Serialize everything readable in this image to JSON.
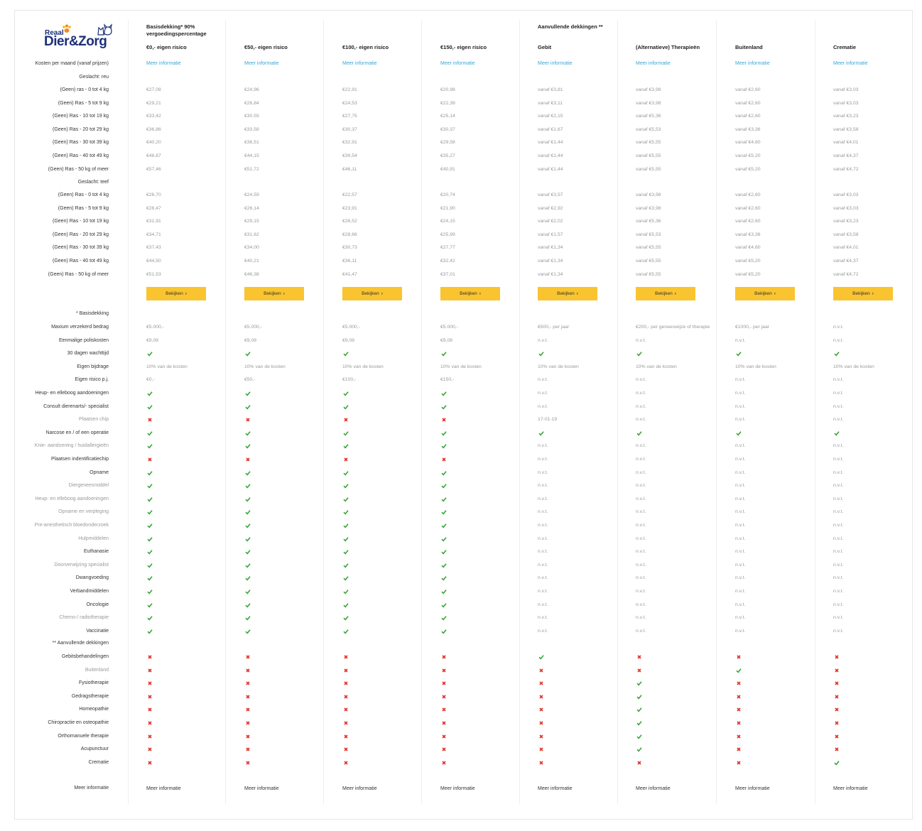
{
  "brand": {
    "top": "Reaal",
    "main": "Dier&Zorg"
  },
  "headers": [
    {
      "group": "Basisdekking* 90% vergoedingspercentage",
      "title": "€0,- eigen risico"
    },
    {
      "group": "",
      "title": "€50,- eigen risico"
    },
    {
      "group": "",
      "title": "€100,- eigen risico"
    },
    {
      "group": "",
      "title": "€150,- eigen risico"
    },
    {
      "group": "Aanvullende dekkingen **",
      "title": "Gebit"
    },
    {
      "group": "",
      "title": "(Alternatieve) Therapieën"
    },
    {
      "group": "",
      "title": "Buitenland"
    },
    {
      "group": "",
      "title": "Crematie"
    }
  ],
  "price_label": "Kosten per maand (vanaf prijzen)",
  "meer_informatie": "Meer informatie",
  "gender_reu": "Geslacht: reu",
  "gender_teef": "Geslacht: teef",
  "weight_labels": [
    "(Geen) ras - 0 tot 4 kg",
    "(Geen) Ras - 5 tot 9 kg",
    "(Geen) Ras - 10 tot 19 kg",
    "(Geen) Ras - 20 tot 29 kg",
    "(Geen) Ras - 30 tot 39 kg",
    "(Geen) Ras - 40  tot 49 kg",
    "(Geen) Ras - 50 kg of meer"
  ],
  "weight_labels_teef": [
    "(Geen) Ras - 0 tot 4 kg",
    "(Geen) Ras - 5 tot 9 kg",
    "(Geen) Ras - 10 tot 19 kg",
    "(Geen) Ras - 20 tot 29 kg",
    "(Geen) Ras - 30 tot 39 kg",
    "(Geen) Ras - 40  tot 49 kg",
    "(Geen) Ras - 50 kg of meer"
  ],
  "prices_reu": [
    [
      "€27,08",
      "€24,96",
      "€22,91",
      "€20,98",
      "vanaf €3,81",
      "vanaf €3,98",
      "vanaf €2,60",
      "vanaf €3,03"
    ],
    [
      "€29,21",
      "€26,84",
      "€24,53",
      "€22,39",
      "vanaf €3,11",
      "vanaf €3,98",
      "vanaf €2,60",
      "vanaf €3,03"
    ],
    [
      "€33,42",
      "€30,55",
      "€27,75",
      "€25,14",
      "vanaf €2,15",
      "vanaf €5,36",
      "vanaf €2,60",
      "vanaf €3,23"
    ],
    [
      "€36,86",
      "€33,58",
      "€30,37",
      "€30,37",
      "vanaf €1,67",
      "vanaf €5,53",
      "vanaf €3,36",
      "vanaf €3,58"
    ],
    [
      "€40,20",
      "€36,51",
      "€32,91",
      "€29,58",
      "vanaf €1,44",
      "vanaf €5,55",
      "vanaf €4,60",
      "vanaf €4,01"
    ],
    [
      "€48,87",
      "€44,15",
      "€39,54",
      "€35,27",
      "vanaf €1,44",
      "vanaf €5,55",
      "vanaf €5,20",
      "vanaf €4,37"
    ],
    [
      "€57,46",
      "€51,72",
      "€46,11",
      "€40,91",
      "vanaf €1,44",
      "vanaf €5,55",
      "vanaf €5,20",
      "vanaf €4,72"
    ]
  ],
  "prices_teef": [
    [
      "€26,70",
      "€24,59",
      "€22,57",
      "€20,74",
      "vanaf €3,57",
      "vanaf €3,98",
      "vanaf €2,60",
      "vanaf €3,03"
    ],
    [
      "€28,47",
      "€26,14",
      "€23,91",
      "€21,90",
      "vanaf €2,92",
      "vanaf €3,98",
      "vanaf €2,60",
      "vanaf €3,03"
    ],
    [
      "€31,91",
      "€29,15",
      "€26,52",
      "€24,15",
      "vanaf €2,02",
      "vanaf €5,36",
      "vanaf €2,60",
      "vanaf €3,23"
    ],
    [
      "€34,71",
      "€31,62",
      "€28,66",
      "€25,99",
      "vanaf €1,57",
      "vanaf €5,53",
      "vanaf €3,36",
      "vanaf €3,58"
    ],
    [
      "€37,43",
      "€34,00",
      "€30,73",
      "€27,77",
      "vanaf €1,34",
      "vanaf €5,55",
      "vanaf €4,60",
      "vanaf €4,01"
    ],
    [
      "€44,50",
      "€40,21",
      "€36,11",
      "€32,42",
      "vanaf €1,34",
      "vanaf €5,55",
      "vanaf €5,20",
      "vanaf €4,37"
    ],
    [
      "€51,53",
      "€46,38",
      "€41,47",
      "€37,01",
      "vanaf €1,34",
      "vanaf €5,55",
      "vanaf €5,20",
      "vanaf €4,72"
    ]
  ],
  "button_label": "Bekijken",
  "basisdekking_label": "* Basisdekking",
  "basis_rows": [
    {
      "label": "Maxium verzekerd bedrag",
      "bold": true,
      "cells": [
        "€5.000,-",
        "€5.000,-",
        "€5.000,-",
        "€5.000,-",
        "€500,- per jaar",
        "€200,- per geneeswijze of therapie",
        "€1000,- per jaar",
        "n.v.t."
      ]
    },
    {
      "label": "Eenmalige poliskosten",
      "bold": true,
      "cells": [
        "€9,08",
        "€9,08",
        "€9,08",
        "€9,08",
        "n.v.t.",
        "n.v.t.",
        "n.v.t.",
        "n.v.t."
      ]
    },
    {
      "label": "30 dagen wachttijd",
      "bold": true,
      "cells": [
        "Y",
        "Y",
        "Y",
        "Y",
        "Y",
        "Y",
        "Y",
        "Y"
      ]
    },
    {
      "label": "Eigen bijdrage",
      "bold": true,
      "cells": [
        "10% van de kosten",
        "10% van de kosten",
        "10% van de kosten",
        "10% van de kosten",
        "10% van de kosten",
        "10% van de kosten",
        "10% van de kosten",
        "10% van de kosten"
      ]
    },
    {
      "label": "Eigen risico p.j.",
      "bold": true,
      "cells": [
        "€0,-",
        "€50,-",
        "€100,-",
        "€150,-",
        "n.v.t.",
        "n.v.t.",
        "n.v.t.",
        "n.v.t."
      ]
    },
    {
      "label": "Heup- en elleboog aandoeningen",
      "bold": true,
      "cells": [
        "Y",
        "Y",
        "Y",
        "Y",
        "n.v.t.",
        "n.v.t.",
        "n.v.t.",
        "n.v.t."
      ]
    },
    {
      "label": "Consult dierenarts/- specialist",
      "bold": true,
      "cells": [
        "Y",
        "Y",
        "Y",
        "Y",
        "n.v.t.",
        "n.v.t.",
        "n.v.t.",
        "n.v.t."
      ]
    },
    {
      "label": "Plaatsen chip",
      "bold": false,
      "cells": [
        "N",
        "N",
        "N",
        "N",
        "17-01-19",
        "n.v.t.",
        "n.v.t.",
        "n.v.t."
      ]
    },
    {
      "label": "Narcose en / of een operatie",
      "bold": true,
      "cells": [
        "Y",
        "Y",
        "Y",
        "Y",
        "Y",
        "Y",
        "Y",
        "Y"
      ]
    },
    {
      "label": "Knie- aandoening / huidallergieën",
      "bold": false,
      "cells": [
        "Y",
        "Y",
        "Y",
        "Y",
        "n.v.t.",
        "n.v.t.",
        "n.v.t.",
        "n.v.t."
      ]
    },
    {
      "label": "Plaatsen indentificatiechip",
      "bold": true,
      "cells": [
        "N",
        "N",
        "N",
        "N",
        "n.v.t.",
        "n.v.t.",
        "n.v.t.",
        "n.v.t."
      ]
    },
    {
      "label": "Opname",
      "bold": true,
      "cells": [
        "Y",
        "Y",
        "Y",
        "Y",
        "n.v.t.",
        "n.v.t.",
        "n.v.t.",
        "n.v.t."
      ]
    },
    {
      "label": "Diergeneesmiddel",
      "bold": false,
      "cells": [
        "Y",
        "Y",
        "Y",
        "Y",
        "n.v.t.",
        "n.v.t.",
        "n.v.t.",
        "n.v.t."
      ]
    },
    {
      "label": "Heup- en elleboog aandoeningen",
      "bold": false,
      "cells": [
        "Y",
        "Y",
        "Y",
        "Y",
        "n.v.t.",
        "n.v.t.",
        "n.v.t.",
        "n.v.t."
      ]
    },
    {
      "label": "Opname en verpleging",
      "bold": false,
      "cells": [
        "Y",
        "Y",
        "Y",
        "Y",
        "n.v.t.",
        "n.v.t.",
        "n.v.t.",
        "n.v.t."
      ]
    },
    {
      "label": "Pre-anesthetisch bloedonderzoek",
      "bold": false,
      "cells": [
        "Y",
        "Y",
        "Y",
        "Y",
        "n.v.t.",
        "n.v.t.",
        "n.v.t.",
        "n.v.t."
      ]
    },
    {
      "label": "Hulpmiddelen",
      "bold": false,
      "cells": [
        "Y",
        "Y",
        "Y",
        "Y",
        "n.v.t.",
        "n.v.t.",
        "n.v.t.",
        "n.v.t."
      ]
    },
    {
      "label": "Euthanasie",
      "bold": true,
      "cells": [
        "Y",
        "Y",
        "Y",
        "Y",
        "n.v.t.",
        "n.v.t.",
        "n.v.t.",
        "n.v.t."
      ]
    },
    {
      "label": "Doorverwijzing specialist",
      "bold": false,
      "cells": [
        "Y",
        "Y",
        "Y",
        "Y",
        "n.v.t.",
        "n.v.t.",
        "n.v.t.",
        "n.v.t."
      ]
    },
    {
      "label": "Dwangvoeding",
      "bold": true,
      "cells": [
        "Y",
        "Y",
        "Y",
        "Y",
        "n.v.t.",
        "n.v.t.",
        "n.v.t.",
        "n.v.t."
      ]
    },
    {
      "label": "Verbandmiddelen",
      "bold": true,
      "cells": [
        "Y",
        "Y",
        "Y",
        "Y",
        "n.v.t.",
        "n.v.t.",
        "n.v.t.",
        "n.v.t."
      ]
    },
    {
      "label": "Oncologie",
      "bold": true,
      "cells": [
        "Y",
        "Y",
        "Y",
        "Y",
        "n.v.t.",
        "n.v.t.",
        "n.v.t.",
        "n.v.t."
      ]
    },
    {
      "label": "Chemo-/ radiotherapie",
      "bold": false,
      "cells": [
        "Y",
        "Y",
        "Y",
        "Y",
        "n.v.t.",
        "n.v.t.",
        "n.v.t.",
        "n.v.t."
      ]
    },
    {
      "label": "Vaccinatie",
      "bold": true,
      "cells": [
        "Y",
        "Y",
        "Y",
        "Y",
        "n.v.t.",
        "n.v.t.",
        "n.v.t.",
        "n.v.t."
      ]
    }
  ],
  "aanvullend_label": "** Aanvullende dekkingen",
  "aanv_rows": [
    {
      "label": "Gebitsbehandelingen",
      "bold": true,
      "cells": [
        "N",
        "N",
        "N",
        "N",
        "Y",
        "N",
        "N",
        "N"
      ]
    },
    {
      "label": "Buitenland",
      "bold": false,
      "cells": [
        "N",
        "N",
        "N",
        "N",
        "N",
        "N",
        "Y",
        "N"
      ]
    },
    {
      "label": "Fysiotherapie",
      "bold": true,
      "cells": [
        "N",
        "N",
        "N",
        "N",
        "N",
        "Y",
        "N",
        "N"
      ]
    },
    {
      "label": "Gedragstherapie",
      "bold": true,
      "cells": [
        "N",
        "N",
        "N",
        "N",
        "N",
        "Y",
        "N",
        "N"
      ]
    },
    {
      "label": "Homeopathie",
      "bold": true,
      "cells": [
        "N",
        "N",
        "N",
        "N",
        "N",
        "Y",
        "N",
        "N"
      ]
    },
    {
      "label": "Chiropractie en osteopathie",
      "bold": true,
      "cells": [
        "N",
        "N",
        "N",
        "N",
        "N",
        "Y",
        "N",
        "N"
      ]
    },
    {
      "label": "Orthomanuele therapie",
      "bold": true,
      "cells": [
        "N",
        "N",
        "N",
        "N",
        "N",
        "Y",
        "N",
        "N"
      ]
    },
    {
      "label": "Acupunctuur",
      "bold": true,
      "cells": [
        "N",
        "N",
        "N",
        "N",
        "N",
        "Y",
        "N",
        "N"
      ]
    },
    {
      "label": "Crematie",
      "bold": true,
      "cells": [
        "N",
        "N",
        "N",
        "N",
        "N",
        "N",
        "N",
        "Y"
      ]
    }
  ],
  "footer_label": "Meer informatie",
  "colors": {
    "accent": "#f9c42f",
    "link": "#3aa7d6",
    "check": "#3aa53a",
    "cross": "#e0312a",
    "brand": "#1c2f7a"
  }
}
